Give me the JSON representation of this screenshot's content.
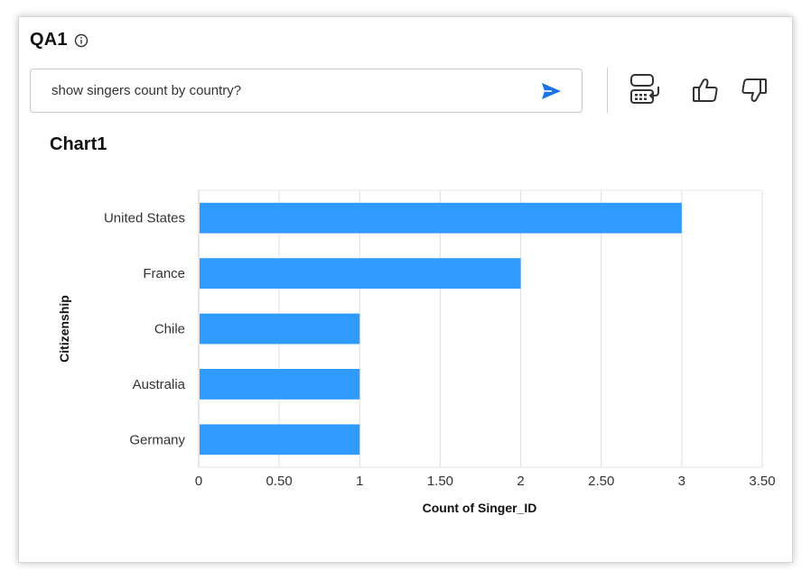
{
  "panel": {
    "title": "QA1"
  },
  "query": {
    "value": "show singers count by country?"
  },
  "icons": {
    "info": "info-icon",
    "send": "send-icon",
    "convert": "convert-to-table-icon",
    "like": "thumbs-up-icon",
    "dislike": "thumbs-down-icon"
  },
  "colors": {
    "bar": "#2f9bff",
    "send": "#1a73e8"
  },
  "chart_data": {
    "type": "bar",
    "orientation": "horizontal",
    "title": "Chart1",
    "xlabel": "Count of Singer_ID",
    "ylabel": "Citizenship",
    "categories": [
      "United States",
      "France",
      "Chile",
      "Australia",
      "Germany"
    ],
    "values": [
      3,
      2,
      1,
      1,
      1
    ],
    "xlim": [
      0,
      3.5
    ],
    "xticks": [
      "0",
      "0.50",
      "1",
      "1.50",
      "2",
      "2.50",
      "3",
      "3.50"
    ],
    "grid": true
  }
}
